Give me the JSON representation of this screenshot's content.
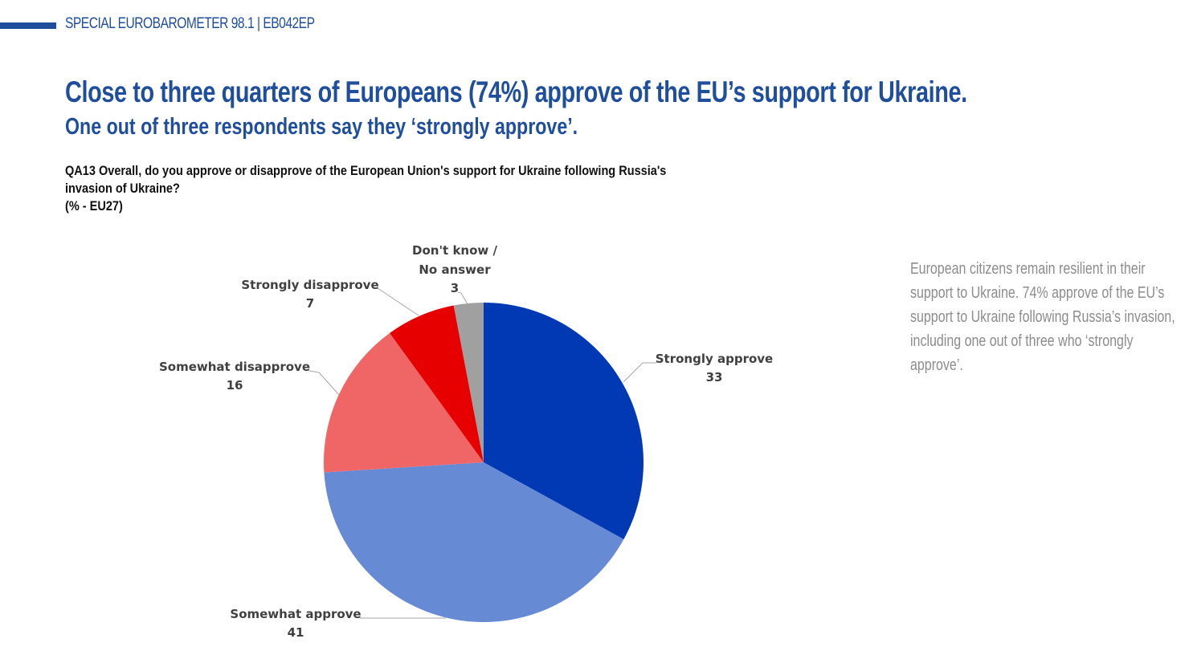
{
  "header": {
    "label": "SPECIAL EUROBAROMETER 98.1 | EB042EP",
    "accent_color": "#1f4e9c"
  },
  "title": "Close to three quarters of Europeans (74%) approve of the EU’s support for Ukraine.",
  "subtitle": "One out of three respondents say they ‘strongly approve’.",
  "question": {
    "line1": "QA13  Overall, do you approve or disapprove of the European Union's support for Ukraine following Russia's",
    "line2": "invasion of Ukraine?",
    "line3": "(% - EU27)"
  },
  "side_note": {
    "lines": [
      "European citizens remain resilient in their",
      "support to Ukraine. 74% approve of the EU’s",
      "support to Ukraine following Russia’s invasion,",
      "including one out of three who ‘strongly",
      "approve’."
    ]
  },
  "chart_data": {
    "type": "pie",
    "title": "QA13 Overall, do you approve or disapprove of the European Union's support for Ukraine following Russia's invasion of Ukraine? (% - EU27)",
    "categories": [
      "Strongly approve",
      "Somewhat approve",
      "Somewhat disapprove",
      "Strongly disapprove",
      "Don't know / No answer"
    ],
    "values": [
      33,
      41,
      16,
      7,
      3
    ],
    "colors": [
      "#0039b3",
      "#668ad4",
      "#f06666",
      "#e60000",
      "#a0a0a0"
    ],
    "start_angle": "12 o'clock, clockwise",
    "unit": "%",
    "labels": {
      "strongly_approve": {
        "name": "Strongly approve",
        "value": "33"
      },
      "somewhat_approve": {
        "name": "Somewhat approve",
        "value": "41"
      },
      "somewhat_disapprove": {
        "name": "Somewhat disapprove",
        "value": "16"
      },
      "strongly_disapprove": {
        "name": "Strongly disapprove",
        "value": "7"
      },
      "dont_know_line1": "Don't know /",
      "dont_know_line2": "No answer",
      "dont_know_value": "3"
    }
  }
}
